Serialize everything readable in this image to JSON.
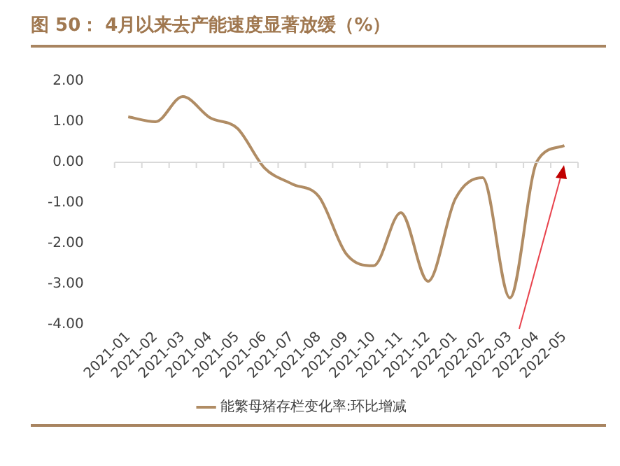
{
  "chart_data": {
    "type": "line",
    "title": "图 50： 4月以来去产能速度显著放缓（%）",
    "categories": [
      "2021-01",
      "2021-02",
      "2021-03",
      "2021-04",
      "2021-05",
      "2021-06",
      "2021-07",
      "2021-08",
      "2021-09",
      "2021-10",
      "2021-11",
      "2021-12",
      "2022-01",
      "2022-02",
      "2022-03",
      "2022-04",
      "2022-05"
    ],
    "series": [
      {
        "name": "能繁母猪存栏变化率:环比增减",
        "color": "#b08c64",
        "values": [
          1.12,
          1.0,
          1.62,
          1.1,
          0.84,
          -0.14,
          -0.53,
          -0.85,
          -2.26,
          -2.55,
          -1.24,
          -2.93,
          -0.9,
          -0.38,
          -3.34,
          0.03,
          0.41
        ]
      }
    ],
    "ylim": [
      -4,
      2
    ],
    "yticks": [
      {
        "value": -4,
        "label": "-4.00"
      },
      {
        "value": -3,
        "label": "-3.00"
      },
      {
        "value": -2,
        "label": "-2.00"
      },
      {
        "value": -1,
        "label": "-1.00"
      },
      {
        "value": 0,
        "label": "0.00"
      },
      {
        "value": 1,
        "label": "1.00"
      },
      {
        "value": 2,
        "label": "2.00"
      }
    ],
    "ref_lines": [
      {
        "axis": "y",
        "value": 0,
        "color": "#d9d9d9"
      }
    ],
    "grid": false,
    "legend": "bottom",
    "marker": "none",
    "line_style": "solid"
  }
}
